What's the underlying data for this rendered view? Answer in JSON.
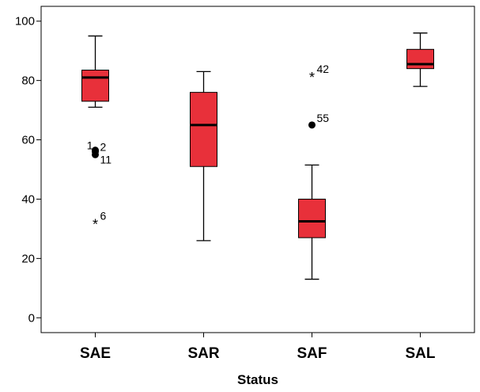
{
  "chart_data": {
    "type": "boxplot",
    "title": "",
    "xlabel": "Status",
    "ylabel": "",
    "ylim": [
      -5,
      105
    ],
    "yticks": [
      0,
      20,
      40,
      60,
      80,
      100
    ],
    "grid": false,
    "box_color": "#e8303a",
    "categories": [
      "SAE",
      "SAR",
      "SAF",
      "SAL"
    ],
    "boxes": [
      {
        "category": "SAE",
        "whisker_low": 71,
        "q1": 73,
        "median": 81,
        "q3": 83.5,
        "whisker_high": 95,
        "outliers": [
          {
            "value": 56.5,
            "label": "1",
            "marker": "circle"
          },
          {
            "value": 56.0,
            "label": "2",
            "marker": "circle"
          },
          {
            "value": 55.0,
            "label": "11",
            "marker": "circle"
          },
          {
            "value": 32.0,
            "label": "6",
            "marker": "star"
          }
        ]
      },
      {
        "category": "SAR",
        "whisker_low": 26,
        "q1": 51,
        "median": 65,
        "q3": 76,
        "whisker_high": 83,
        "outliers": []
      },
      {
        "category": "SAF",
        "whisker_low": 13,
        "q1": 27,
        "median": 32.5,
        "q3": 40,
        "whisker_high": 51.5,
        "outliers": [
          {
            "value": 65.0,
            "label": "55",
            "marker": "circle"
          },
          {
            "value": 81.5,
            "label": "42",
            "marker": "star"
          }
        ]
      },
      {
        "category": "SAL",
        "whisker_low": 78,
        "q1": 84,
        "median": 85.5,
        "q3": 90.5,
        "whisker_high": 96,
        "outliers": []
      }
    ]
  }
}
